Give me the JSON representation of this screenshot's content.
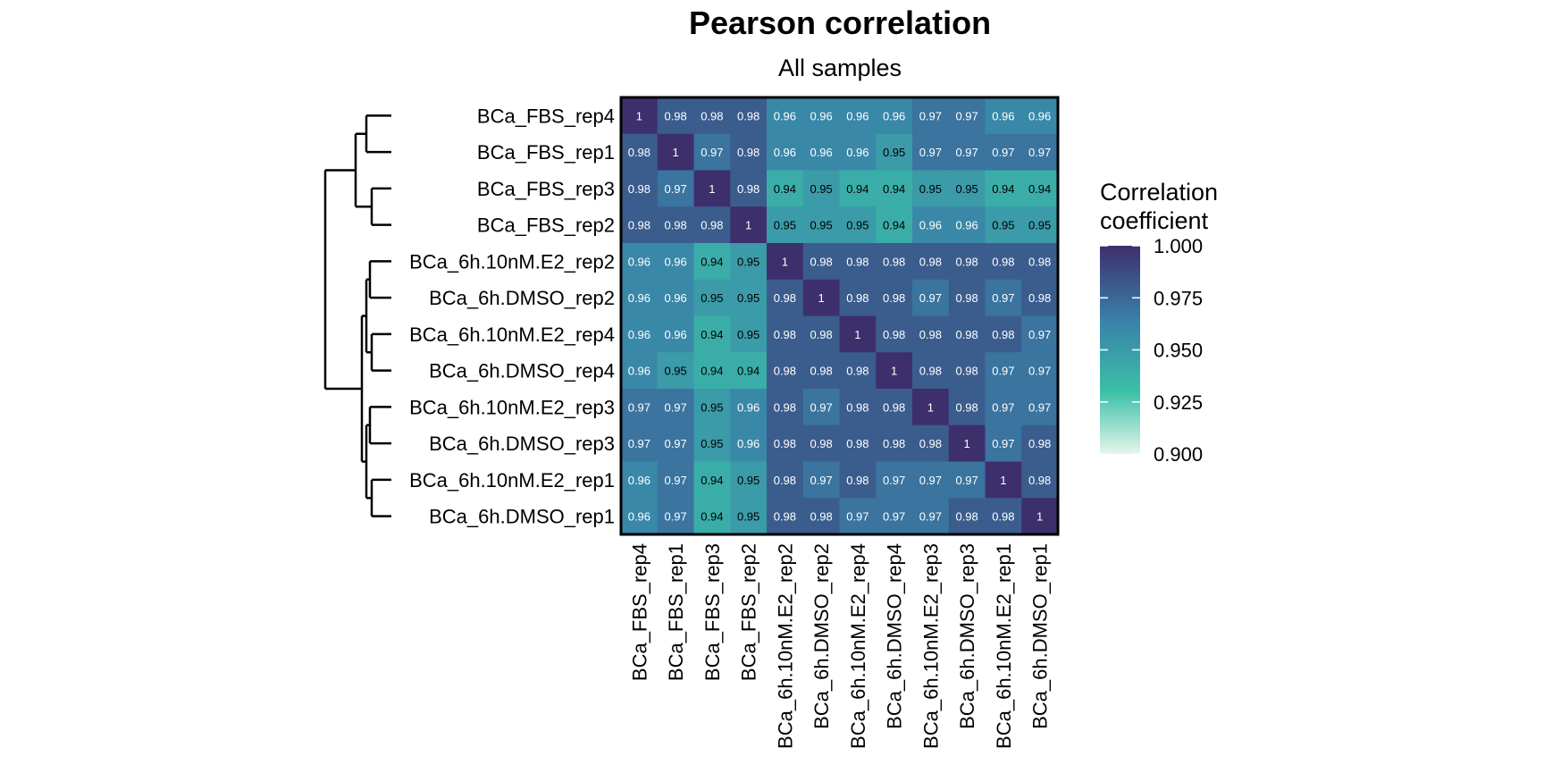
{
  "chart_data": {
    "type": "heatmap",
    "title": "Pearson correlation",
    "subtitle": "All samples",
    "rows": [
      "BCa_FBS_rep4",
      "BCa_FBS_rep1",
      "BCa_FBS_rep3",
      "BCa_FBS_rep2",
      "BCa_6h.10nM.E2_rep2",
      "BCa_6h.DMSO_rep2",
      "BCa_6h.10nM.E2_rep4",
      "BCa_6h.DMSO_rep4",
      "BCa_6h.10nM.E2_rep3",
      "BCa_6h.DMSO_rep3",
      "BCa_6h.10nM.E2_rep1",
      "BCa_6h.DMSO_rep1"
    ],
    "columns": [
      "BCa_FBS_rep4",
      "BCa_FBS_rep1",
      "BCa_FBS_rep3",
      "BCa_FBS_rep2",
      "BCa_6h.10nM.E2_rep2",
      "BCa_6h.DMSO_rep2",
      "BCa_6h.10nM.E2_rep4",
      "BCa_6h.DMSO_rep4",
      "BCa_6h.10nM.E2_rep3",
      "BCa_6h.DMSO_rep3",
      "BCa_6h.10nM.E2_rep1",
      "BCa_6h.DMSO_rep1"
    ],
    "values": [
      [
        1,
        0.98,
        0.98,
        0.98,
        0.96,
        0.96,
        0.96,
        0.96,
        0.97,
        0.97,
        0.96,
        0.96
      ],
      [
        0.98,
        1,
        0.97,
        0.98,
        0.96,
        0.96,
        0.96,
        0.95,
        0.97,
        0.97,
        0.97,
        0.97
      ],
      [
        0.98,
        0.97,
        1,
        0.98,
        0.94,
        0.95,
        0.94,
        0.94,
        0.95,
        0.95,
        0.94,
        0.94
      ],
      [
        0.98,
        0.98,
        0.98,
        1,
        0.95,
        0.95,
        0.95,
        0.94,
        0.96,
        0.96,
        0.95,
        0.95
      ],
      [
        0.96,
        0.96,
        0.94,
        0.95,
        1,
        0.98,
        0.98,
        0.98,
        0.98,
        0.98,
        0.98,
        0.98
      ],
      [
        0.96,
        0.96,
        0.95,
        0.95,
        0.98,
        1,
        0.98,
        0.98,
        0.97,
        0.98,
        0.97,
        0.98
      ],
      [
        0.96,
        0.96,
        0.94,
        0.95,
        0.98,
        0.98,
        1,
        0.98,
        0.98,
        0.98,
        0.98,
        0.97
      ],
      [
        0.96,
        0.95,
        0.94,
        0.94,
        0.98,
        0.98,
        0.98,
        1,
        0.98,
        0.98,
        0.97,
        0.97
      ],
      [
        0.97,
        0.97,
        0.95,
        0.96,
        0.98,
        0.97,
        0.98,
        0.98,
        1,
        0.98,
        0.97,
        0.97
      ],
      [
        0.97,
        0.97,
        0.95,
        0.96,
        0.98,
        0.98,
        0.98,
        0.98,
        0.98,
        1,
        0.97,
        0.98
      ],
      [
        0.96,
        0.97,
        0.94,
        0.95,
        0.98,
        0.97,
        0.98,
        0.97,
        0.97,
        0.97,
        1,
        0.98
      ],
      [
        0.96,
        0.97,
        0.94,
        0.95,
        0.98,
        0.98,
        0.97,
        0.97,
        0.97,
        0.98,
        0.98,
        1
      ]
    ],
    "legend": {
      "title_line1": "Correlation",
      "title_line2": "coefficient",
      "range": [
        0.9,
        1.0
      ],
      "ticks": [
        "1.000",
        "0.975",
        "0.950",
        "0.925",
        "0.900"
      ],
      "tick_values": [
        1.0,
        0.975,
        0.95,
        0.925,
        0.9
      ],
      "colors": [
        "#e4f6ea",
        "#3cc0a8",
        "#3a7fa8",
        "#3d2f6c"
      ]
    }
  }
}
